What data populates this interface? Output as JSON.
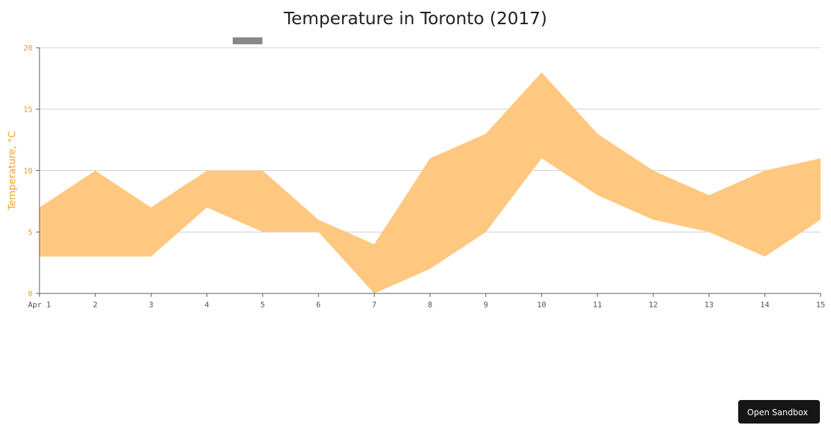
{
  "chart_data": {
    "type": "area",
    "title": "Temperature in Toronto (2017)",
    "ylabel": "Temperature, °C",
    "xlabel": "",
    "ylim": [
      0,
      20
    ],
    "yticks": [
      0,
      5,
      10,
      15,
      20
    ],
    "categories": [
      "Apr 1",
      "2",
      "3",
      "4",
      "5",
      "6",
      "7",
      "8",
      "9",
      "10",
      "11",
      "12",
      "13",
      "14",
      "15"
    ],
    "series": [
      {
        "low": [
          3,
          3,
          3,
          7,
          5,
          5,
          0,
          2,
          5,
          11,
          8,
          6,
          5,
          3,
          6
        ],
        "high": [
          7,
          10,
          7,
          10,
          10,
          6,
          4,
          11,
          13,
          18,
          13,
          10,
          8,
          10,
          11
        ]
      }
    ],
    "grid": true,
    "colors": {
      "band": "#ffc880",
      "axis_label": "#f0a028",
      "grid": "#cccccc",
      "axis": "#555555",
      "x_tick_text": "#555555"
    }
  },
  "ui": {
    "sandbox_label": "Open Sandbox"
  }
}
